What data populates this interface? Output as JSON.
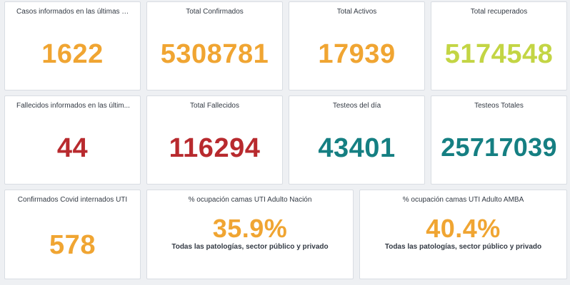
{
  "colors": {
    "orange": "#f0a532",
    "lime": "#c3d544",
    "red": "#b82a2e",
    "teal": "#157f82"
  },
  "row1": [
    {
      "title": "Casos informados en las últimas 2...",
      "value": "1622",
      "color": "orange"
    },
    {
      "title": "Total Confirmados",
      "value": "5308781",
      "color": "orange"
    },
    {
      "title": "Total Activos",
      "value": "17939",
      "color": "orange"
    },
    {
      "title": "Total recuperados",
      "value": "5174548",
      "color": "lime"
    }
  ],
  "row2": [
    {
      "title": "Fallecidos informados en las últim...",
      "value": "44",
      "color": "red"
    },
    {
      "title": "Total Fallecidos",
      "value": "116294",
      "color": "red"
    },
    {
      "title": "Testeos del día",
      "value": "43401",
      "color": "teal"
    },
    {
      "title": "Testeos Totales",
      "value": "25717039",
      "color": "teal"
    }
  ],
  "row3": [
    {
      "title": "Confirmados Covid internados UTI",
      "value": "578",
      "color": "orange"
    },
    {
      "title": "% ocupación camas UTI Adulto Nación",
      "value": "35.9%",
      "subtitle": "Todas las patologías, sector público y privado",
      "color": "orange"
    },
    {
      "title": "% ocupación camas UTI Adulto AMBA",
      "value": "40.4%",
      "subtitle": "Todas las patologías, sector público y privado",
      "color": "orange"
    }
  ]
}
